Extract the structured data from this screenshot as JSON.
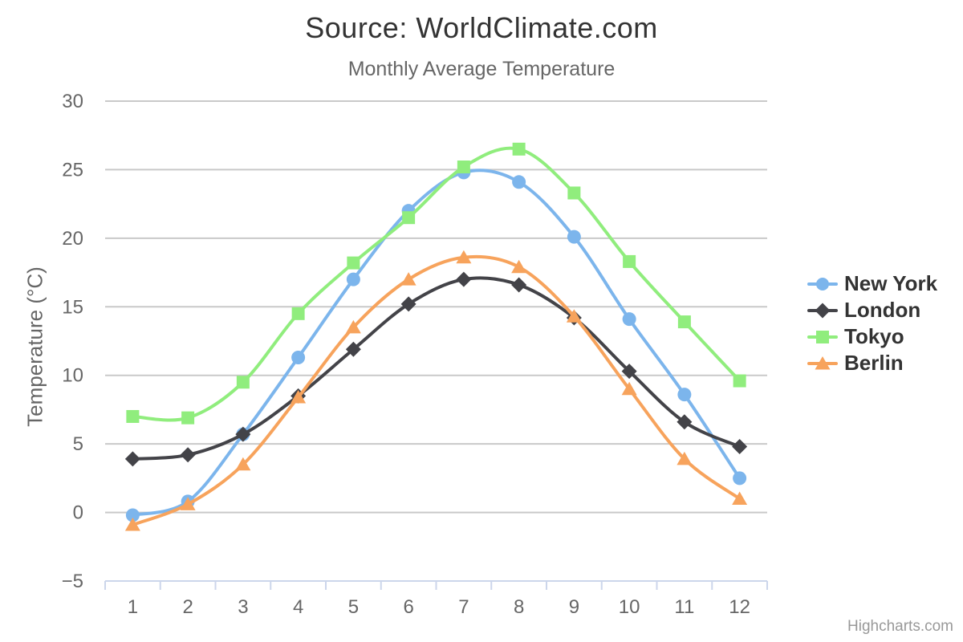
{
  "title": "Source: WorldClimate.com",
  "subtitle": "Monthly Average Temperature",
  "credit": "Highcharts.com",
  "colors": {
    "title_text": "#333333",
    "subtitle_text": "#666666",
    "axis_text": "#666666",
    "legend_text": "#333333",
    "credit_text": "#999999",
    "grid_line": "#c9c9c9",
    "axis_line": "#ccd6eb"
  },
  "chart_data": {
    "type": "line",
    "title": "Source: WorldClimate.com",
    "subtitle": "Monthly Average Temperature",
    "xlabel": "",
    "ylabel": "Temperature (°C)",
    "ylim": [
      -5,
      30
    ],
    "grid": true,
    "legend_position": "right",
    "categories": [
      "1",
      "2",
      "3",
      "4",
      "5",
      "6",
      "7",
      "8",
      "9",
      "10",
      "11",
      "12"
    ],
    "yticks": [
      {
        "v": 30,
        "label": "30"
      },
      {
        "v": 25,
        "label": "25"
      },
      {
        "v": 20,
        "label": "20"
      },
      {
        "v": 15,
        "label": "15"
      },
      {
        "v": 10,
        "label": "10"
      },
      {
        "v": 5,
        "label": "5"
      },
      {
        "v": 0,
        "label": "0"
      },
      {
        "v": -5,
        "label": "−5"
      }
    ],
    "series": [
      {
        "name": "New York",
        "color": "#7cb5ec",
        "marker": "circle",
        "values": [
          -0.2,
          0.8,
          5.7,
          11.3,
          17.0,
          22.0,
          24.8,
          24.1,
          20.1,
          14.1,
          8.6,
          2.5
        ]
      },
      {
        "name": "London",
        "color": "#434348",
        "marker": "diamond",
        "values": [
          3.9,
          4.2,
          5.7,
          8.5,
          11.9,
          15.2,
          17.0,
          16.6,
          14.2,
          10.3,
          6.6,
          4.8
        ]
      },
      {
        "name": "Tokyo",
        "color": "#90ed7d",
        "marker": "square",
        "values": [
          7.0,
          6.9,
          9.5,
          14.5,
          18.2,
          21.5,
          25.2,
          26.5,
          23.3,
          18.3,
          13.9,
          9.6
        ]
      },
      {
        "name": "Berlin",
        "color": "#f7a35c",
        "marker": "triangle",
        "values": [
          -0.9,
          0.6,
          3.5,
          8.4,
          13.5,
          17.0,
          18.6,
          17.9,
          14.3,
          9.0,
          3.9,
          1.0
        ]
      }
    ]
  }
}
